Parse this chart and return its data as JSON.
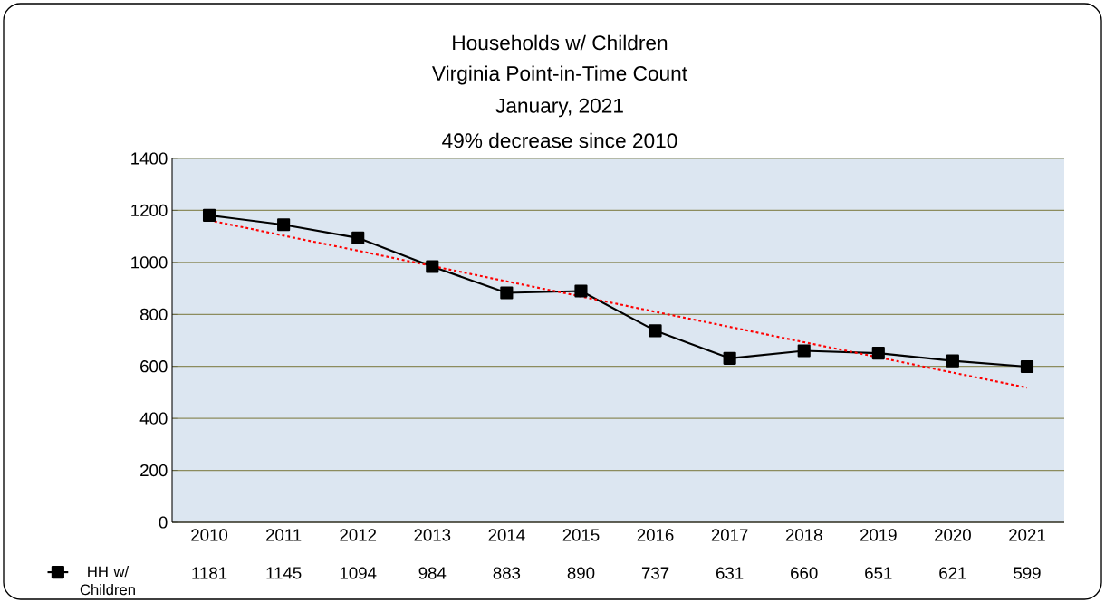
{
  "chart_data": {
    "type": "line",
    "title": "Households w/ Children",
    "subtitle": "Virginia Point-in-Time Count",
    "annotations": [
      "January, 2021",
      "49% decrease since 2010"
    ],
    "categories": [
      "2010",
      "2011",
      "2012",
      "2013",
      "2014",
      "2015",
      "2016",
      "2017",
      "2018",
      "2019",
      "2020",
      "2021"
    ],
    "series": [
      {
        "name": "HH w/ Children",
        "color": "#000000",
        "values": [
          1181,
          1145,
          1094,
          984,
          883,
          890,
          737,
          631,
          660,
          651,
          621,
          599
        ],
        "marker": "square",
        "line_style": "solid",
        "value_labels": [
          "1181",
          "1145",
          "1094",
          "984",
          "883",
          "890",
          "737",
          "631",
          "660",
          "651",
          "621",
          "599"
        ]
      },
      {
        "color": "#ff0000",
        "values": [
          1162,
          1103,
          1045,
          986,
          927,
          869,
          810,
          752,
          693,
          635,
          576,
          518
        ],
        "marker": "none",
        "line_style": "dotted"
      }
    ],
    "ylim": [
      0,
      1400
    ],
    "yticks": [
      0,
      200,
      400,
      600,
      800,
      1000,
      1200,
      1400
    ],
    "grid": "y",
    "legend": "bottom left"
  }
}
